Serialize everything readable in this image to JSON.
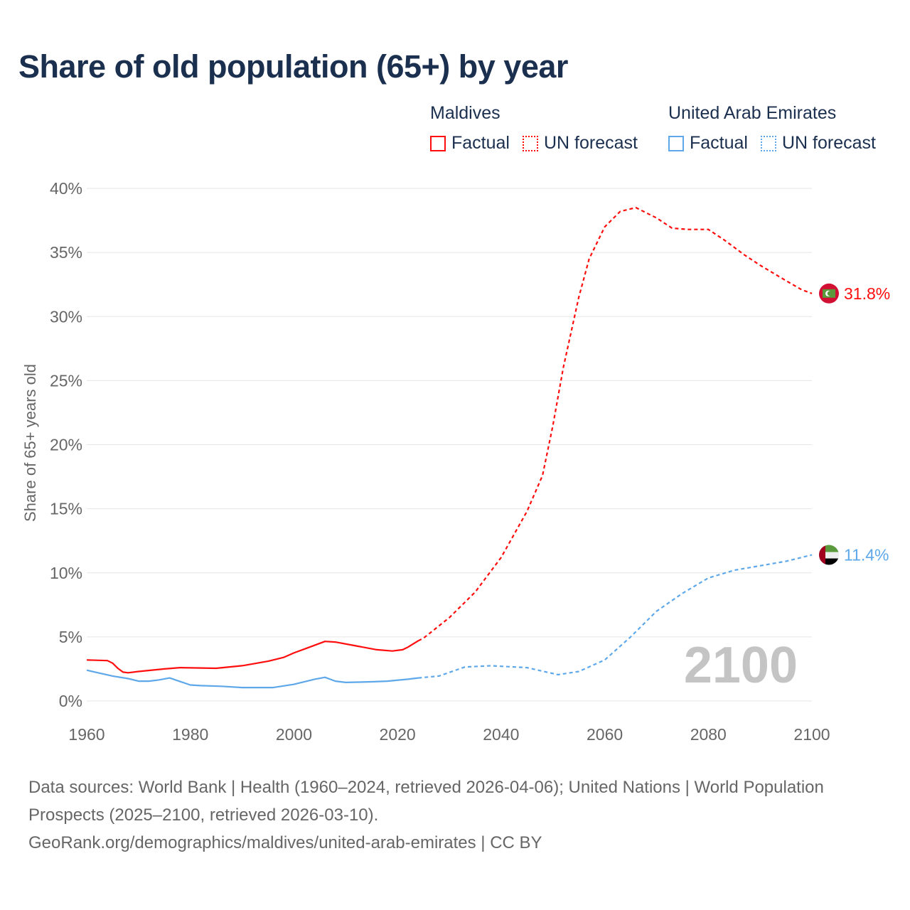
{
  "title": "Share of old population (65+) by year",
  "legend": {
    "groups": [
      {
        "name": "Maldives",
        "color": "#ff0d0d",
        "factual": "Factual",
        "forecast": "UN forecast"
      },
      {
        "name": "United Arab Emirates",
        "color": "#5ea8ea",
        "factual": "Factual",
        "forecast": "UN forecast"
      }
    ]
  },
  "watermark_year": "2100",
  "footer": {
    "line1": "Data sources: World Bank | Health (1960–2024, retrieved 2026-04-06); United Nations | World Population Prospects (2025–2100, retrieved 2026-03-10).",
    "line2": "GeoRank.org/demographics/maldives/united-arab-emirates | CC BY"
  },
  "chart_data": {
    "type": "line",
    "title": "Share of old population (65+) by year",
    "xlabel": "",
    "ylabel": "Share of 65+ years old",
    "xlim": [
      1960,
      2100
    ],
    "ylim": [
      0,
      40
    ],
    "x_ticks": [
      "1960",
      "1980",
      "2000",
      "2020",
      "2040",
      "2060",
      "2080",
      "2100"
    ],
    "y_ticks": [
      "0%",
      "5%",
      "10%",
      "15%",
      "20%",
      "25%",
      "30%",
      "35%",
      "40%"
    ],
    "grid": true,
    "legend_position": "top-right",
    "series": [
      {
        "name": "Maldives",
        "kind": "Factual",
        "color": "#ff0d0d",
        "end_label": "31.8%",
        "x": [
          1960,
          1964,
          1965,
          1966,
          1967,
          1968,
          1970,
          1975,
          1978,
          1985,
          1990,
          1995,
          1998,
          2000,
          2003,
          2006,
          2008,
          2012,
          2016,
          2019,
          2021,
          2022,
          2024
        ],
        "y": [
          3.2,
          3.15,
          2.95,
          2.55,
          2.25,
          2.2,
          2.3,
          2.5,
          2.6,
          2.55,
          2.75,
          3.1,
          3.4,
          3.75,
          4.2,
          4.65,
          4.6,
          4.3,
          4.0,
          3.9,
          4.0,
          4.2,
          4.7
        ]
      },
      {
        "name": "Maldives",
        "kind": "UN forecast",
        "color": "#ff0d0d",
        "x": [
          2024,
          2025,
          2030,
          2035,
          2040,
          2045,
          2048,
          2050,
          2052,
          2055,
          2057,
          2060,
          2063,
          2066,
          2070,
          2073,
          2076,
          2080,
          2083,
          2087,
          2090,
          2095,
          2098,
          2100
        ],
        "y": [
          4.7,
          4.9,
          6.5,
          8.5,
          11.2,
          14.8,
          17.6,
          21.5,
          26.0,
          31.5,
          34.5,
          37.0,
          38.2,
          38.5,
          37.7,
          36.9,
          36.8,
          36.8,
          36.0,
          34.8,
          34.0,
          32.8,
          32.1,
          31.8
        ]
      },
      {
        "name": "United Arab Emirates",
        "kind": "Factual",
        "color": "#5ea8ea",
        "end_label": "11.4%",
        "x": [
          1960,
          1965,
          1968,
          1970,
          1972,
          1974,
          1976,
          1980,
          1982,
          1986,
          1990,
          1996,
          2000,
          2004,
          2006,
          2008,
          2010,
          2015,
          2018,
          2022,
          2024
        ],
        "y": [
          2.4,
          1.95,
          1.75,
          1.55,
          1.55,
          1.65,
          1.8,
          1.25,
          1.2,
          1.15,
          1.05,
          1.05,
          1.3,
          1.7,
          1.85,
          1.55,
          1.45,
          1.5,
          1.55,
          1.7,
          1.8
        ]
      },
      {
        "name": "United Arab Emirates",
        "kind": "UN forecast",
        "color": "#5ea8ea",
        "x": [
          2024,
          2028,
          2033,
          2038,
          2045,
          2051,
          2055,
          2060,
          2065,
          2070,
          2075,
          2080,
          2085,
          2090,
          2095,
          2100
        ],
        "y": [
          1.8,
          1.95,
          2.65,
          2.75,
          2.6,
          2.05,
          2.3,
          3.2,
          5.0,
          7.0,
          8.4,
          9.6,
          10.2,
          10.55,
          10.9,
          11.4
        ]
      }
    ]
  }
}
